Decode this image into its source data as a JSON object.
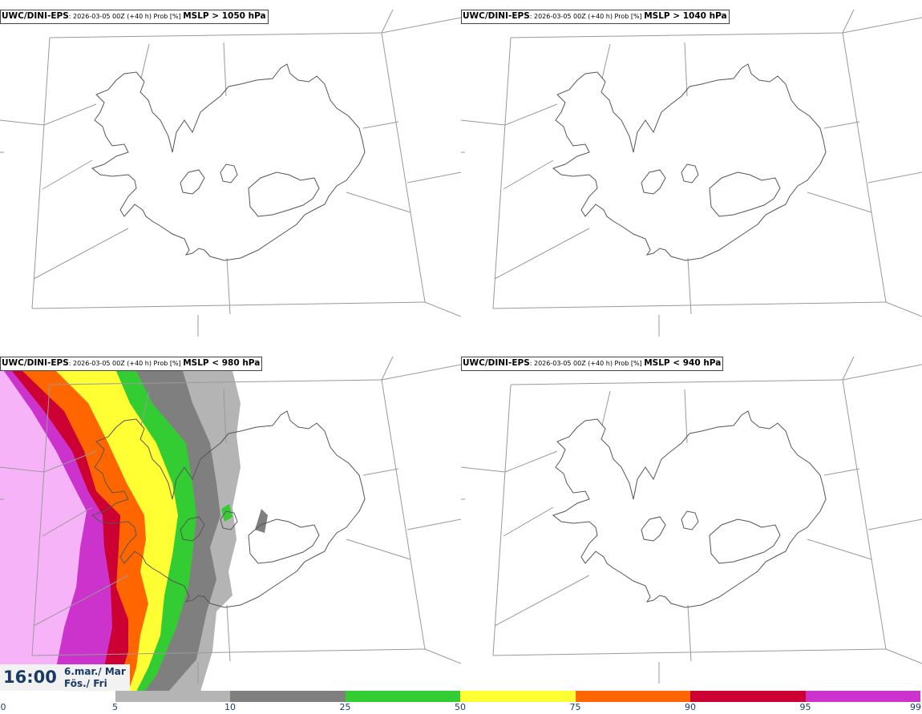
{
  "panels": [
    {
      "model": "UWC/DINI-EPS",
      "run": ": 2026-03-05 00Z (+40 h) Prob [%] ",
      "threshold": "MSLP > 1050 hPa"
    },
    {
      "model": "UWC/DINI-EPS",
      "run": ": 2026-03-05 00Z (+40 h) Prob [%] ",
      "threshold": "MSLP > 1040 hPa"
    },
    {
      "model": "UWC/DINI-EPS",
      "run": ": 2026-03-05 00Z (+40 h) Prob [%] ",
      "threshold": "MSLP < 980 hPa"
    },
    {
      "model": "UWC/DINI-EPS",
      "run": ": 2026-03-05 00Z (+40 h) Prob [%] ",
      "threshold": "MSLP < 940 hPa"
    }
  ],
  "time": {
    "clock": "16:00",
    "date": "6.mar./ Mar",
    "day": "Fös./ Fri"
  },
  "legend": {
    "ticks": [
      "0",
      "5",
      "10",
      "25",
      "50",
      "75",
      "90",
      "95",
      "99"
    ],
    "colors": [
      "#ffffff",
      "#b4b4b4",
      "#7f7f7f",
      "#33cc33",
      "#ffff33",
      "#ff6600",
      "#cc0033",
      "#cc33cc",
      "#f7b3f7"
    ]
  }
}
